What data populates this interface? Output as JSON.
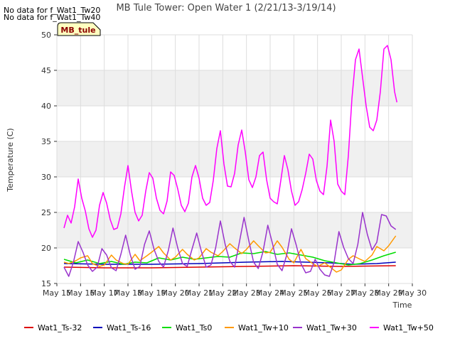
{
  "chart_data": {
    "type": "line",
    "title": "MB Tule Tower: Open Water 1 (2/21/13-3/19/14)",
    "xlabel": "Time",
    "ylabel": "Temperature (C)",
    "ylim": [
      15,
      50
    ],
    "xlim": [
      15,
      30
    ],
    "yticks": [
      15,
      20,
      25,
      30,
      35,
      40,
      45,
      50
    ],
    "xticks": [
      {
        "v": 15,
        "label": "May 15"
      },
      {
        "v": 16,
        "label": "May 16"
      },
      {
        "v": 17,
        "label": "May 17"
      },
      {
        "v": 18,
        "label": "May 18"
      },
      {
        "v": 19,
        "label": "May 19"
      },
      {
        "v": 20,
        "label": "May 20"
      },
      {
        "v": 21,
        "label": "May 21"
      },
      {
        "v": 22,
        "label": "May 22"
      },
      {
        "v": 23,
        "label": "May 23"
      },
      {
        "v": 24,
        "label": "May 24"
      },
      {
        "v": 25,
        "label": "May 25"
      },
      {
        "v": 26,
        "label": "May 26"
      },
      {
        "v": 27,
        "label": "May 27"
      },
      {
        "v": 28,
        "label": "May 28"
      },
      {
        "v": 29,
        "label": "May 29"
      },
      {
        "v": 30,
        "label": "May 30"
      }
    ],
    "shaded_bands": [
      [
        20,
        25
      ],
      [
        30,
        35
      ],
      [
        40,
        45
      ]
    ],
    "grid": true,
    "legend_position": "bottom",
    "no_data_messages": [
      "No data for f_Wat1_Tw20",
      "No data for f_Wat1_Tw40"
    ],
    "station_badge": "MB_tule",
    "series": [
      {
        "name": "Wat1_Ts-32",
        "color": "#dd0000",
        "x": [
          15.3,
          17,
          19,
          21,
          23,
          25,
          27,
          29.3
        ],
        "y": [
          17.3,
          17.2,
          17.2,
          17.3,
          17.4,
          17.5,
          17.4,
          17.5
        ]
      },
      {
        "name": "Wat1_Ts-16",
        "color": "#0000bb",
        "x": [
          15.3,
          17,
          19,
          21,
          23,
          24.5,
          25.5,
          26.5,
          27.5,
          28.5,
          29.3
        ],
        "y": [
          17.8,
          17.7,
          17.7,
          17.8,
          18.0,
          18.1,
          18.0,
          17.9,
          17.7,
          17.8,
          18.0
        ]
      },
      {
        "name": "Wat1_Ts0",
        "color": "#00dd00",
        "x": [
          15.3,
          15.8,
          16.3,
          16.8,
          17.3,
          17.8,
          18.3,
          18.8,
          19.3,
          19.8,
          20.3,
          20.8,
          21.3,
          21.8,
          22.3,
          22.8,
          23.3,
          23.8,
          24.3,
          24.8,
          25.3,
          25.8,
          26.3,
          26.8,
          27.3,
          27.8,
          28.3,
          28.8,
          29.3
        ],
        "y": [
          18.4,
          17.9,
          18.3,
          17.8,
          18.1,
          17.7,
          18.0,
          17.9,
          18.6,
          18.3,
          18.7,
          18.4,
          18.6,
          18.8,
          18.7,
          19.3,
          19.2,
          19.5,
          19.1,
          19.3,
          19.0,
          18.7,
          18.2,
          17.9,
          17.6,
          17.8,
          18.3,
          18.9,
          19.4
        ]
      },
      {
        "name": "Wat1_Tw+10",
        "color": "#ff9900",
        "x": [
          15.3,
          15.5,
          15.8,
          16.0,
          16.3,
          16.5,
          16.8,
          17.0,
          17.3,
          17.5,
          17.8,
          18.0,
          18.3,
          18.5,
          18.8,
          19.0,
          19.3,
          19.5,
          19.8,
          20.0,
          20.3,
          20.5,
          20.8,
          21.0,
          21.3,
          21.5,
          21.8,
          22.0,
          22.3,
          22.5,
          22.8,
          23.0,
          23.3,
          23.5,
          23.8,
          24.0,
          24.3,
          24.5,
          24.8,
          25.0,
          25.3,
          25.5,
          25.8,
          26.0,
          26.3,
          26.5,
          26.8,
          27.0,
          27.3,
          27.5,
          27.8,
          28.0,
          28.3,
          28.5,
          28.8,
          29.0,
          29.3
        ],
        "y": [
          18.0,
          17.8,
          18.2,
          18.6,
          18.9,
          17.8,
          17.4,
          17.6,
          19.0,
          18.3,
          17.8,
          17.7,
          19.1,
          18.2,
          18.9,
          19.4,
          20.2,
          19.3,
          18.3,
          18.7,
          19.8,
          19.1,
          18.3,
          18.6,
          19.9,
          19.4,
          18.9,
          19.5,
          20.6,
          20.0,
          19.2,
          19.8,
          21.0,
          20.3,
          19.3,
          19.4,
          21.0,
          20.1,
          18.4,
          17.9,
          19.8,
          18.5,
          17.8,
          17.4,
          17.9,
          17.4,
          16.6,
          16.9,
          18.4,
          18.9,
          18.4,
          18.1,
          19.0,
          20.2,
          19.6,
          20.3,
          21.7
        ]
      },
      {
        "name": "Wat1_Tw+30",
        "color": "#9933cc",
        "x": [
          15.3,
          15.5,
          15.7,
          15.9,
          16.1,
          16.3,
          16.5,
          16.7,
          16.9,
          17.1,
          17.3,
          17.5,
          17.7,
          17.9,
          18.1,
          18.3,
          18.5,
          18.7,
          18.9,
          19.1,
          19.3,
          19.5,
          19.7,
          19.9,
          20.1,
          20.3,
          20.5,
          20.7,
          20.9,
          21.1,
          21.3,
          21.5,
          21.7,
          21.9,
          22.1,
          22.3,
          22.5,
          22.7,
          22.9,
          23.1,
          23.3,
          23.5,
          23.7,
          23.9,
          24.1,
          24.3,
          24.5,
          24.7,
          24.9,
          25.1,
          25.3,
          25.5,
          25.7,
          25.9,
          26.1,
          26.3,
          26.5,
          26.7,
          26.9,
          27.1,
          27.3,
          27.5,
          27.7,
          27.9,
          28.1,
          28.3,
          28.5,
          28.7,
          28.9,
          29.1,
          29.3
        ],
        "y": [
          17.3,
          16.0,
          18.0,
          20.9,
          19.4,
          17.6,
          16.7,
          17.3,
          19.9,
          19.0,
          17.2,
          16.8,
          19.1,
          21.8,
          19.0,
          17.0,
          17.4,
          20.5,
          22.4,
          19.8,
          18.1,
          17.3,
          19.6,
          22.8,
          20.0,
          17.8,
          17.4,
          19.8,
          22.1,
          19.5,
          17.3,
          17.6,
          20.0,
          23.8,
          20.5,
          18.1,
          17.3,
          20.8,
          24.3,
          21.0,
          18.0,
          17.1,
          19.5,
          23.2,
          20.6,
          17.7,
          16.8,
          19.0,
          22.7,
          20.4,
          17.8,
          16.5,
          16.7,
          18.4,
          17.0,
          16.2,
          16.0,
          18.0,
          22.3,
          20.1,
          18.5,
          17.8,
          20.5,
          25.0,
          21.9,
          19.7,
          20.8,
          24.7,
          24.5,
          23.1,
          22.6
        ]
      },
      {
        "name": "Wat1_Tw+50",
        "color": "#ff00ff",
        "x": [
          15.3,
          15.45,
          15.6,
          15.75,
          15.9,
          16.05,
          16.2,
          16.35,
          16.5,
          16.65,
          16.8,
          16.95,
          17.1,
          17.25,
          17.4,
          17.55,
          17.7,
          17.85,
          18.0,
          18.15,
          18.3,
          18.45,
          18.6,
          18.75,
          18.9,
          19.05,
          19.2,
          19.35,
          19.5,
          19.65,
          19.8,
          19.95,
          20.1,
          20.25,
          20.4,
          20.55,
          20.7,
          20.85,
          21.0,
          21.15,
          21.3,
          21.45,
          21.6,
          21.75,
          21.9,
          22.05,
          22.2,
          22.35,
          22.5,
          22.65,
          22.8,
          22.95,
          23.1,
          23.25,
          23.4,
          23.55,
          23.7,
          23.85,
          24.0,
          24.15,
          24.3,
          24.45,
          24.6,
          24.75,
          24.9,
          25.05,
          25.2,
          25.35,
          25.5,
          25.65,
          25.8,
          25.95,
          26.1,
          26.25,
          26.4,
          26.55,
          26.7,
          26.85,
          27.0,
          27.15,
          27.3,
          27.45,
          27.6,
          27.75,
          27.9,
          28.05,
          28.2,
          28.35,
          28.5,
          28.65,
          28.8,
          28.95,
          29.1,
          29.25,
          29.35
        ],
        "y": [
          22.8,
          24.6,
          23.5,
          25.8,
          29.7,
          27.0,
          25.2,
          22.7,
          21.5,
          22.5,
          26.0,
          27.8,
          26.3,
          24.0,
          22.6,
          22.8,
          24.8,
          28.5,
          31.6,
          28.0,
          25.0,
          23.8,
          24.6,
          28.0,
          30.6,
          29.8,
          27.0,
          25.3,
          24.8,
          26.6,
          30.7,
          30.2,
          28.3,
          26.0,
          25.1,
          26.3,
          30.0,
          31.6,
          29.8,
          27.0,
          26.0,
          26.4,
          29.5,
          34.0,
          36.5,
          31.8,
          28.7,
          28.6,
          30.5,
          34.5,
          36.6,
          33.5,
          29.6,
          28.5,
          30.0,
          33.0,
          33.5,
          29.6,
          27.0,
          26.5,
          26.2,
          29.5,
          33.0,
          31.0,
          28.0,
          26.0,
          26.5,
          28.2,
          30.5,
          33.2,
          32.5,
          29.5,
          28.0,
          27.5,
          31.5,
          38.0,
          35.0,
          29.0,
          28.0,
          27.5,
          33.0,
          41.0,
          46.5,
          48.0,
          44.0,
          40.0,
          37.0,
          36.5,
          38.0,
          42.0,
          48.0,
          48.5,
          46.5,
          42.0,
          40.5
        ]
      }
    ]
  }
}
